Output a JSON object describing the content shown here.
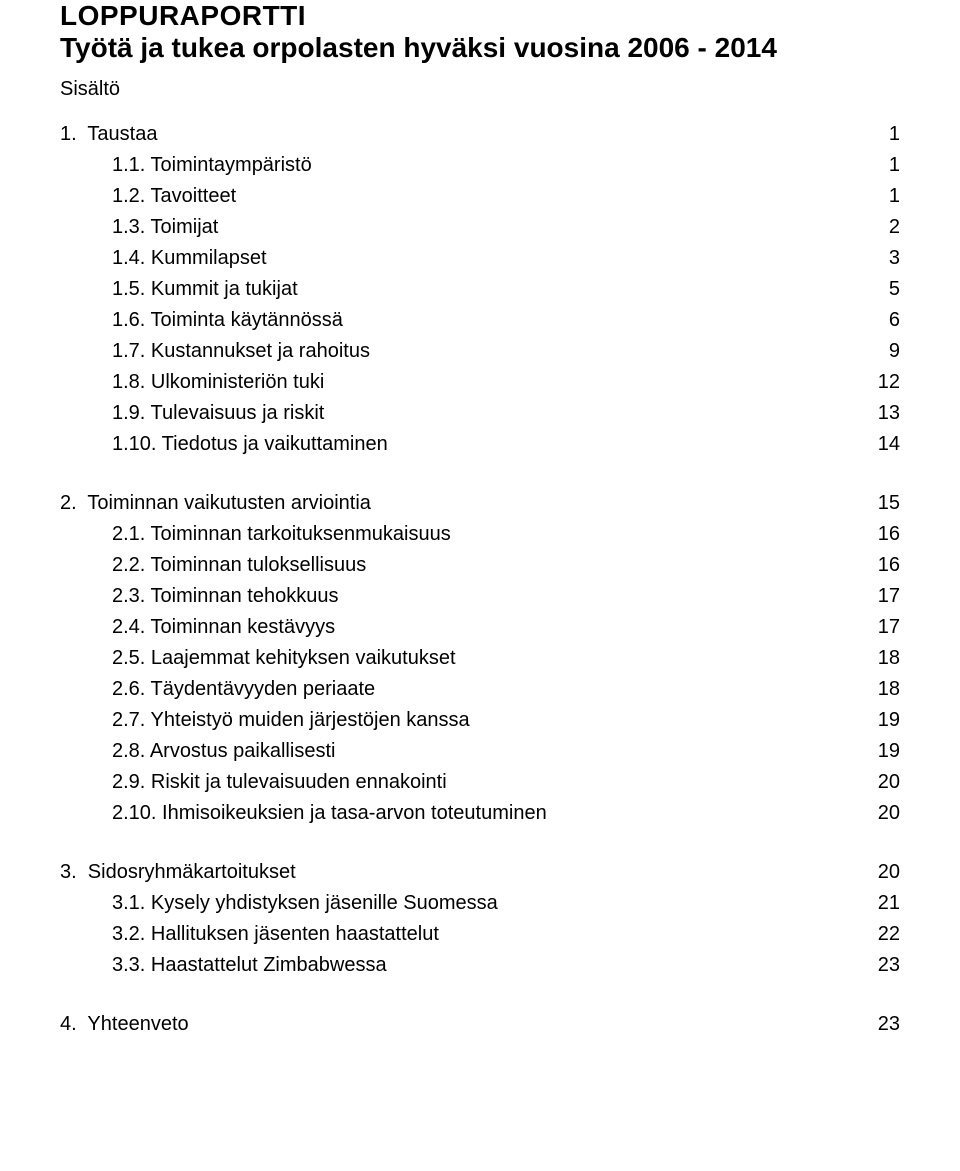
{
  "title_line1": "LOPPURAPORTTI",
  "title_line2": "Työtä ja tukea orpolasten hyväksi vuosina 2006 - 2014",
  "contents_label": "Sisältö",
  "groups": [
    {
      "header": {
        "num": "1.",
        "label": "Taustaa",
        "page": "1",
        "indent": 0
      },
      "items": [
        {
          "num": "1.1.",
          "label": "Toimintaympäristö",
          "page": "1"
        },
        {
          "num": "1.2.",
          "label": "Tavoitteet",
          "page": "1"
        },
        {
          "num": "1.3.",
          "label": "Toimijat",
          "page": "2"
        },
        {
          "num": "1.4.",
          "label": "Kummilapset",
          "page": "3"
        },
        {
          "num": "1.5.",
          "label": "Kummit ja tukijat",
          "page": "5"
        },
        {
          "num": "1.6.",
          "label": "Toiminta käytännössä",
          "page": "6"
        },
        {
          "num": "1.7.",
          "label": "Kustannukset ja rahoitus",
          "page": "9"
        },
        {
          "num": "1.8.",
          "label": "Ulkoministeriön tuki",
          "page": "12"
        },
        {
          "num": "1.9.",
          "label": "Tulevaisuus ja riskit",
          "page": "13"
        },
        {
          "num": "1.10.",
          "label": "Tiedotus ja vaikuttaminen",
          "page": "14"
        }
      ]
    },
    {
      "header": {
        "num": "2.",
        "label": "Toiminnan vaikutusten arviointia",
        "page": "15",
        "indent": 0
      },
      "items": [
        {
          "num": "2.1.",
          "label": "Toiminnan tarkoituksenmukaisuus",
          "page": "16"
        },
        {
          "num": "2.2.",
          "label": "Toiminnan tuloksellisuus",
          "page": "16"
        },
        {
          "num": "2.3.",
          "label": "Toiminnan tehokkuus",
          "page": "17"
        },
        {
          "num": "2.4.",
          "label": "Toiminnan kestävyys",
          "page": "17"
        },
        {
          "num": "2.5.",
          "label": "Laajemmat kehityksen vaikutukset",
          "page": "18"
        },
        {
          "num": "2.6.",
          "label": "Täydentävyyden periaate",
          "page": "18"
        },
        {
          "num": "2.7.",
          "label": "Yhteistyö muiden järjestöjen kanssa",
          "page": "19"
        },
        {
          "num": "2.8.",
          "label": "Arvostus paikallisesti",
          "page": "19"
        },
        {
          "num": "2.9.",
          "label": "Riskit ja tulevaisuuden ennakointi",
          "page": "20"
        },
        {
          "num": "2.10.",
          "label": "Ihmisoikeuksien ja tasa-arvon toteutuminen",
          "page": "20"
        }
      ]
    },
    {
      "header": {
        "num": "3.",
        "label": "Sidosryhmäkartoitukset",
        "page": "20",
        "indent": 0
      },
      "items": [
        {
          "num": "3.1.",
          "label": "Kysely yhdistyksen jäsenille Suomessa",
          "page": "21"
        },
        {
          "num": "3.2.",
          "label": "Hallituksen jäsenten haastattelut",
          "page": "22"
        },
        {
          "num": "3.3.",
          "label": "Haastattelut Zimbabwessa",
          "page": "23"
        }
      ]
    },
    {
      "header": {
        "num": "4.",
        "label": "Yhteenveto",
        "page": "23",
        "indent": 0
      },
      "items": []
    }
  ]
}
